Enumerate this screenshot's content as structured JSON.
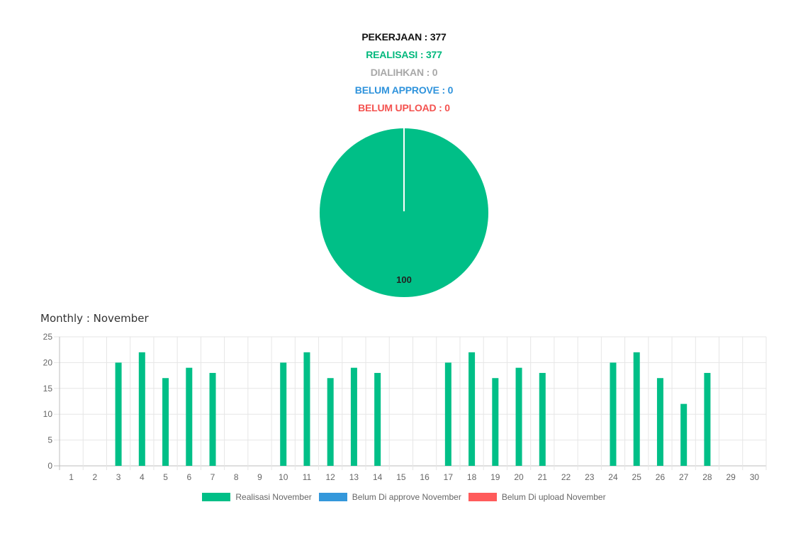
{
  "summary": {
    "pekerjaan": {
      "text": "PEKERJAAN : 377",
      "color": "#111111"
    },
    "realisasi": {
      "text": "REALISASI : 377",
      "color": "#00b87c"
    },
    "dialihkan": {
      "text": "DIALIHKAN : 0",
      "color": "#a8a8a8"
    },
    "belum_approve": {
      "text": "BELUM APPROVE : 0",
      "color": "#2f93dc"
    },
    "belum_upload": {
      "text": "BELUM UPLOAD : 0",
      "color": "#f4524f"
    }
  },
  "pie_chart": {
    "type": "pie",
    "slices": [
      {
        "label": "Realisasi",
        "value": 100,
        "color": "#00bf87"
      }
    ],
    "data_label": "100"
  },
  "monthly_title": "Monthly : November",
  "chart_data": {
    "type": "bar",
    "categories": [
      "1",
      "2",
      "3",
      "4",
      "5",
      "6",
      "7",
      "8",
      "9",
      "10",
      "11",
      "12",
      "13",
      "14",
      "15",
      "16",
      "17",
      "18",
      "19",
      "20",
      "21",
      "22",
      "23",
      "24",
      "25",
      "26",
      "27",
      "28",
      "29",
      "30"
    ],
    "series": [
      {
        "name": "Realisasi November",
        "color": "#00bf87",
        "values": [
          0,
          0,
          20,
          22,
          17,
          19,
          18,
          0,
          0,
          20,
          22,
          17,
          19,
          18,
          0,
          0,
          20,
          22,
          17,
          19,
          18,
          0,
          0,
          20,
          22,
          17,
          12,
          18,
          0,
          0
        ]
      },
      {
        "name": "Belum Di approve November",
        "color": "#3498db",
        "values": [
          0,
          0,
          0,
          0,
          0,
          0,
          0,
          0,
          0,
          0,
          0,
          0,
          0,
          0,
          0,
          0,
          0,
          0,
          0,
          0,
          0,
          0,
          0,
          0,
          0,
          0,
          0,
          0,
          0,
          0
        ]
      },
      {
        "name": "Belum Di upload November",
        "color": "#ff5b5b",
        "values": [
          0,
          0,
          0,
          0,
          0,
          0,
          0,
          0,
          0,
          0,
          0,
          0,
          0,
          0,
          0,
          0,
          0,
          0,
          0,
          0,
          0,
          0,
          0,
          0,
          0,
          0,
          0,
          0,
          0,
          0
        ]
      }
    ],
    "ylim": [
      0,
      25
    ],
    "yticks": [
      0,
      5,
      10,
      15,
      20,
      25
    ],
    "grid": true,
    "legend_position": "bottom"
  }
}
